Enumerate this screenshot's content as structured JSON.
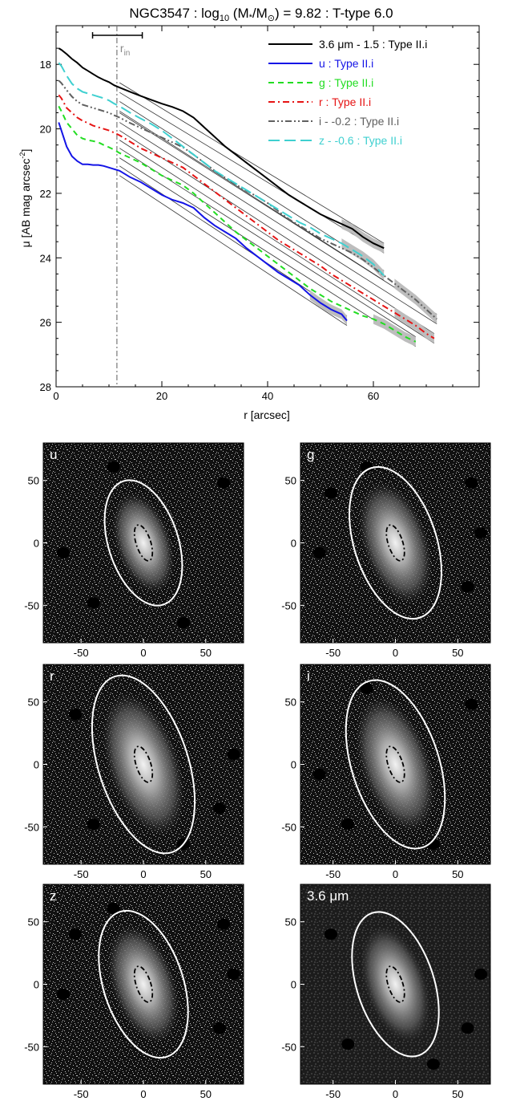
{
  "chart_data": [
    {
      "type": "line",
      "title": "NGC3547 : log10 (M*/M⊙) = 9.82 : T-type 6.0",
      "title_parts": {
        "name": "NGC3547 : log",
        "sub10": "10",
        "mid": " (M",
        "star": "*",
        "slash": "/M",
        "sun": "⊙",
        "tail": ") = 9.82 : T-type 6.0"
      },
      "xlabel": "r [arcsec]",
      "ylabel": "μ [AB mag arcsec⁻²]",
      "ylabel_parts": {
        "main": "μ [AB mag arcsec",
        "sup": "-2",
        "end": "]"
      },
      "xlim": [
        0,
        80
      ],
      "ylim": [
        28,
        16.8
      ],
      "y_inverted": true,
      "xticks": [
        0,
        20,
        40,
        60
      ],
      "yticks": [
        18,
        20,
        22,
        24,
        26,
        28
      ],
      "grid": false,
      "legend_placement": "top-right",
      "r_in": 11.5,
      "r_in_label": {
        "main": "r",
        "sub": "in"
      },
      "r_in_bar": [
        6.9,
        16.3
      ],
      "series": [
        {
          "name": "3.6 μm - 1.5 : Type II.i",
          "color": "#000000",
          "dash": "",
          "x": [
            0.5,
            1,
            2,
            3,
            4,
            5,
            6,
            7,
            8,
            9,
            10,
            11,
            12,
            14,
            16,
            18,
            20,
            22,
            24,
            26,
            28,
            30,
            32,
            34,
            36,
            38,
            40,
            42,
            44,
            46,
            48,
            50,
            52,
            54,
            56,
            58,
            60,
            62
          ],
          "y": [
            17.5,
            17.55,
            17.68,
            17.83,
            17.95,
            18.1,
            18.2,
            18.3,
            18.4,
            18.48,
            18.55,
            18.65,
            18.72,
            18.85,
            18.98,
            19.1,
            19.22,
            19.32,
            19.45,
            19.65,
            19.95,
            20.25,
            20.55,
            20.8,
            21.05,
            21.3,
            21.55,
            21.8,
            22.05,
            22.25,
            22.45,
            22.65,
            22.8,
            22.95,
            23.1,
            23.35,
            23.55,
            23.7
          ]
        },
        {
          "name": "u : Type II.i",
          "color": "#1414e6",
          "dash": "",
          "x": [
            0.5,
            1,
            2,
            3,
            4,
            5,
            6,
            7,
            8,
            9,
            10,
            11,
            12,
            14,
            16,
            18,
            20,
            22,
            24,
            26,
            28,
            30,
            32,
            34,
            36,
            38,
            40,
            42,
            44,
            46,
            48,
            50,
            52,
            54,
            55
          ],
          "y": [
            19.8,
            20.05,
            20.55,
            20.85,
            21.0,
            21.1,
            21.1,
            21.12,
            21.12,
            21.15,
            21.2,
            21.25,
            21.3,
            21.5,
            21.65,
            21.85,
            22.05,
            22.2,
            22.3,
            22.45,
            22.75,
            23.0,
            23.2,
            23.4,
            23.7,
            23.95,
            24.2,
            24.45,
            24.65,
            24.85,
            25.15,
            25.4,
            25.6,
            25.75,
            25.95
          ]
        },
        {
          "name": "g : Type II.i",
          "color": "#22dd22",
          "dash": "7,5",
          "x": [
            0.5,
            1,
            2,
            3,
            4,
            5,
            6,
            7,
            8,
            9,
            10,
            11,
            12,
            14,
            16,
            18,
            20,
            22,
            24,
            26,
            28,
            30,
            32,
            34,
            36,
            38,
            40,
            42,
            44,
            46,
            48,
            50,
            52,
            54,
            56,
            58,
            60,
            62,
            64,
            66,
            68
          ],
          "y": [
            19.3,
            19.45,
            19.8,
            20.0,
            20.2,
            20.3,
            20.35,
            20.38,
            20.42,
            20.5,
            20.57,
            20.65,
            20.75,
            20.9,
            21.05,
            21.25,
            21.45,
            21.6,
            21.75,
            22.0,
            22.3,
            22.6,
            22.9,
            23.2,
            23.45,
            23.7,
            23.95,
            24.2,
            24.45,
            24.7,
            24.95,
            25.15,
            25.35,
            25.5,
            25.65,
            25.8,
            25.9,
            26.05,
            26.25,
            26.45,
            26.6
          ]
        },
        {
          "name": "r : Type II.i",
          "color": "#e61414",
          "dash": "8,4,2,4",
          "x": [
            0.5,
            1,
            2,
            3,
            4,
            5,
            6,
            7,
            8,
            9,
            10,
            11,
            12,
            14,
            16,
            18,
            20,
            22,
            24,
            26,
            28,
            30,
            32,
            34,
            36,
            38,
            40,
            42,
            44,
            46,
            48,
            50,
            52,
            54,
            56,
            58,
            60,
            62,
            64,
            66,
            68,
            70,
            71.5
          ],
          "y": [
            18.95,
            19.05,
            19.35,
            19.5,
            19.65,
            19.75,
            19.82,
            19.9,
            19.95,
            20.0,
            20.05,
            20.12,
            20.2,
            20.4,
            20.6,
            20.75,
            20.9,
            21.05,
            21.2,
            21.45,
            21.7,
            21.95,
            22.2,
            22.45,
            22.7,
            22.95,
            23.2,
            23.45,
            23.65,
            23.85,
            24.05,
            24.25,
            24.5,
            24.7,
            24.9,
            25.1,
            25.3,
            25.5,
            25.7,
            25.9,
            26.1,
            26.35,
            26.5
          ]
        },
        {
          "name": "i - -0.2 : Type II.i",
          "color": "#606060",
          "dash": "8,3,2,3,2,3",
          "x": [
            0.5,
            1,
            2,
            3,
            4,
            5,
            6,
            7,
            8,
            9,
            10,
            11,
            12,
            14,
            16,
            18,
            20,
            22,
            24,
            26,
            28,
            30,
            32,
            34,
            36,
            38,
            40,
            42,
            44,
            46,
            48,
            50,
            52,
            54,
            56,
            58,
            60,
            62,
            64,
            66,
            68,
            70,
            72
          ],
          "y": [
            18.5,
            18.58,
            18.8,
            19.0,
            19.15,
            19.25,
            19.3,
            19.35,
            19.4,
            19.45,
            19.5,
            19.58,
            19.65,
            19.82,
            19.97,
            20.12,
            20.27,
            20.42,
            20.57,
            20.8,
            21.05,
            21.3,
            21.52,
            21.73,
            21.92,
            22.1,
            22.3,
            22.55,
            22.8,
            23.0,
            23.2,
            23.4,
            23.55,
            23.7,
            23.85,
            24.05,
            24.3,
            24.55,
            24.8,
            25.05,
            25.3,
            25.6,
            25.9
          ]
        },
        {
          "name": "z - -0.6 : Type II.i",
          "color": "#3fd0d0",
          "dash": "14,6",
          "x": [
            0.5,
            1,
            2,
            3,
            4,
            5,
            6,
            7,
            8,
            9,
            10,
            11,
            12,
            14,
            16,
            18,
            20,
            22,
            24,
            26,
            28,
            30,
            32,
            34,
            36,
            38,
            40,
            42,
            44,
            46,
            48,
            50,
            52,
            54,
            56,
            58,
            60,
            62
          ],
          "y": [
            17.95,
            18.05,
            18.35,
            18.6,
            18.75,
            18.85,
            18.9,
            18.95,
            19.0,
            19.05,
            19.12,
            19.22,
            19.3,
            19.5,
            19.68,
            19.85,
            20.05,
            20.3,
            20.55,
            20.8,
            21.05,
            21.3,
            21.5,
            21.7,
            21.9,
            22.1,
            22.3,
            22.5,
            22.7,
            22.9,
            23.05,
            23.25,
            23.4,
            23.55,
            23.75,
            23.95,
            24.2,
            24.55
          ]
        }
      ]
    },
    {
      "type": "image-panels",
      "xticks": [
        -50,
        0,
        50
      ],
      "yticks": [
        50,
        0,
        -50
      ],
      "panels": [
        {
          "label": "u",
          "pa_deg": 18,
          "outer_axes": [
            28,
            52
          ],
          "inner_axes": [
            4.5,
            10
          ]
        },
        {
          "label": "g",
          "pa_deg": 18,
          "outer_axes": [
            33,
            63
          ],
          "inner_axes": [
            4.5,
            10
          ]
        },
        {
          "label": "r",
          "pa_deg": 18,
          "outer_axes": [
            36,
            74
          ],
          "inner_axes": [
            4.5,
            10
          ]
        },
        {
          "label": "i",
          "pa_deg": 18,
          "outer_axes": [
            35,
            70
          ],
          "inner_axes": [
            4.5,
            10
          ]
        },
        {
          "label": "z",
          "pa_deg": 18,
          "outer_axes": [
            32,
            61
          ],
          "inner_axes": [
            4.5,
            10
          ]
        },
        {
          "label": "3.6 μm",
          "pa_deg": 18,
          "outer_axes": [
            31,
            60
          ],
          "inner_axes": [
            4.5,
            10
          ]
        }
      ]
    }
  ]
}
